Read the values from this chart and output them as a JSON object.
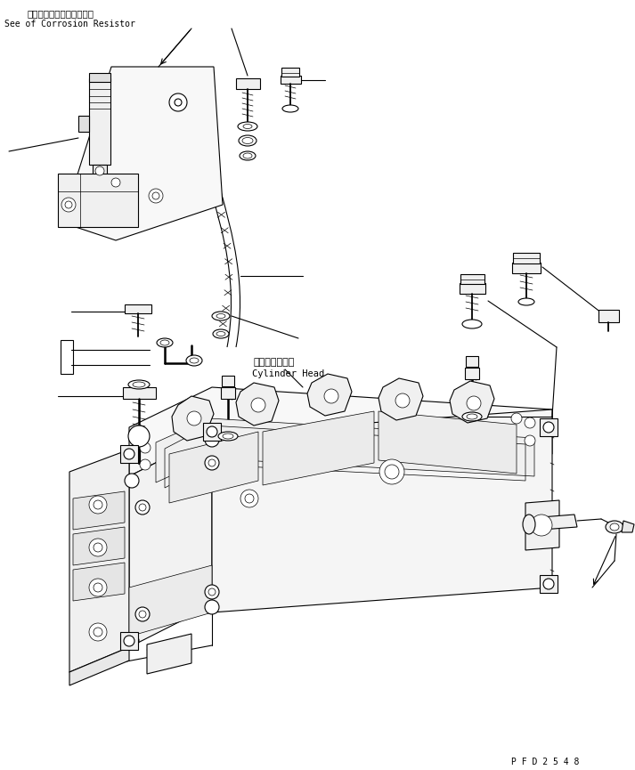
{
  "bg_color": "#ffffff",
  "line_color": "#000000",
  "fig_width": 7.13,
  "fig_height": 8.65,
  "dpi": 100,
  "title_jp": "コロージョンレジスタ参照",
  "title_en": "See of Corrosion Resistor",
  "label_cylinder_jp": "シリンダヘッド",
  "label_cylinder_en": "Cylinder Head",
  "watermark": "P F D 2 5 4 8",
  "lw": 0.8,
  "tlw": 0.5
}
